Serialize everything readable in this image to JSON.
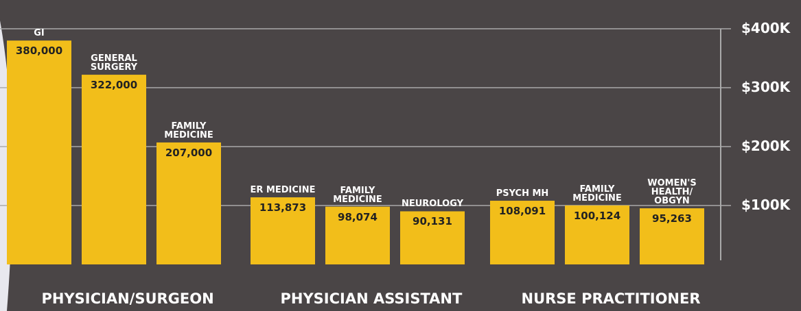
{
  "chart_data": {
    "type": "bar",
    "groups": [
      {
        "name": "PHYSICIAN/SURGEON",
        "categories": [
          "GI",
          "GENERAL SURGERY",
          "FAMILY MEDICINE"
        ],
        "values": [
          380000,
          322000,
          207000
        ],
        "value_labels": [
          "380,000",
          "322,000",
          "207,000"
        ]
      },
      {
        "name": "PHYSICIAN ASSISTANT",
        "categories": [
          "ER MEDICINE",
          "FAMILY MEDICINE",
          "NEUROLOGY"
        ],
        "values": [
          113873,
          98074,
          90131
        ],
        "value_labels": [
          "113,873",
          "98,074",
          "90,131"
        ]
      },
      {
        "name": "NURSE PRACTITIONER",
        "categories": [
          "PSYCH MH",
          "FAMILY MEDICINE",
          "WOMEN'S HEALTH/ OBGYN"
        ],
        "values": [
          108091,
          100124,
          95263
        ],
        "value_labels": [
          "108,091",
          "100,124",
          "95,263"
        ]
      }
    ],
    "color": "#f2be1a",
    "ylim": [
      0,
      400000
    ],
    "yticks": [
      {
        "value": 100000,
        "label": "$100K"
      },
      {
        "value": 200000,
        "label": "$200K"
      },
      {
        "value": 300000,
        "label": "$300K"
      },
      {
        "value": 400000,
        "label": "$400K"
      }
    ],
    "grid": true
  }
}
